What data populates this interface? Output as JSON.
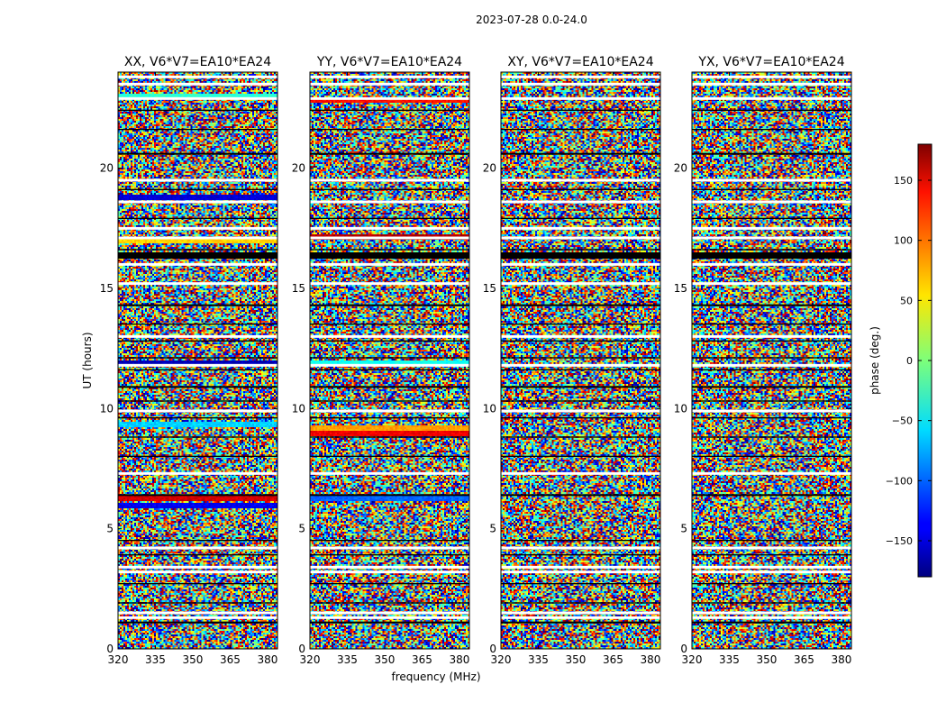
{
  "chart_data": {
    "type": "heatmap",
    "suptitle": "2023-07-28 0.0-24.0",
    "xlabel": "frequency (MHz)",
    "ylabel": "UT (hours)",
    "xlim": [
      320,
      384
    ],
    "ylim": [
      0,
      24
    ],
    "xticks": [
      320,
      335,
      350,
      365,
      380
    ],
    "yticks": [
      0,
      5,
      10,
      15,
      20
    ],
    "panels": [
      {
        "title": "XX, V6*V7=EA10*EA24"
      },
      {
        "title": "YY, V6*V7=EA10*EA24"
      },
      {
        "title": "XY, V6*V7=EA10*EA24"
      },
      {
        "title": "YX, V6*V7=EA10*EA24"
      }
    ],
    "colorbar": {
      "label": "phase (deg.)",
      "range": [
        -180,
        180
      ],
      "ticks": [
        150,
        100,
        50,
        0,
        -50,
        -100,
        -150
      ],
      "tick_labels": [
        "150",
        "100",
        "50",
        "0",
        "−50",
        "−100",
        "−150"
      ],
      "colormap": "jet"
    },
    "flagged_ut_hours_black": [
      1.1,
      1.9,
      2.7,
      3.9,
      4.5,
      6.4,
      8.0,
      8.8,
      9.6,
      10.3,
      10.9,
      11.6,
      12.1,
      12.8,
      13.5,
      14.3,
      16.4,
      16.6,
      17.9,
      19.1,
      20.6,
      21.6,
      22.4
    ],
    "flagged_ut_hours_white": [
      1.3,
      1.5,
      3.2,
      3.4,
      4.2,
      7.3,
      9.9,
      11.8,
      13.0,
      15.2,
      16.0,
      17.1,
      17.5,
      18.6,
      19.5,
      22.9,
      23.5,
      23.8
    ],
    "coherent_bands": [
      {
        "panel": 0,
        "ut_hours": 23.0,
        "phase_deg": -30
      },
      {
        "panel": 0,
        "ut_hours": 18.8,
        "phase_deg": -150
      },
      {
        "panel": 0,
        "ut_hours": 17.0,
        "phase_deg": 60
      },
      {
        "panel": 0,
        "ut_hours": 11.9,
        "phase_deg": -160
      },
      {
        "panel": 0,
        "ut_hours": 9.4,
        "phase_deg": -60
      },
      {
        "panel": 0,
        "ut_hours": 6.3,
        "phase_deg": 150
      },
      {
        "panel": 0,
        "ut_hours": 6.0,
        "phase_deg": -140
      },
      {
        "panel": 1,
        "ut_hours": 22.9,
        "phase_deg": 130
      },
      {
        "panel": 1,
        "ut_hours": 17.2,
        "phase_deg": 160
      },
      {
        "panel": 1,
        "ut_hours": 9.2,
        "phase_deg": 80
      },
      {
        "panel": 1,
        "ut_hours": 9.0,
        "phase_deg": 140
      },
      {
        "panel": 1,
        "ut_hours": 6.3,
        "phase_deg": -100
      },
      {
        "panel": 1,
        "ut_hours": 11.9,
        "phase_deg": -40
      }
    ]
  }
}
